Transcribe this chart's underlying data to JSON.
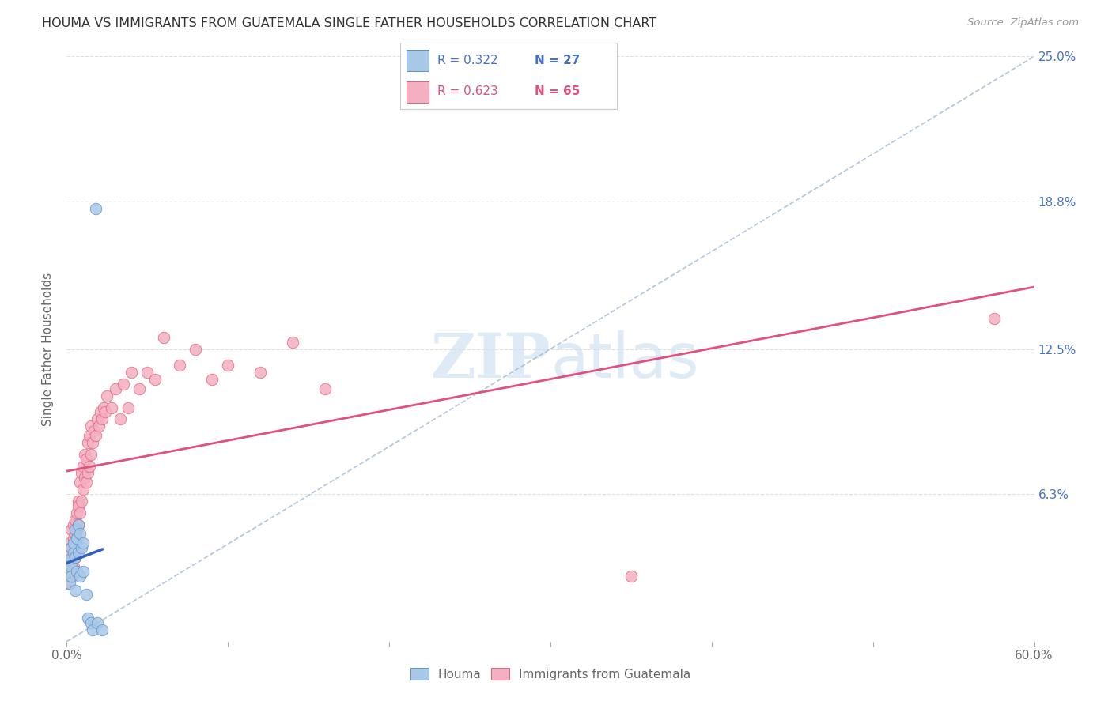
{
  "title": "HOUMA VS IMMIGRANTS FROM GUATEMALA SINGLE FATHER HOUSEHOLDS CORRELATION CHART",
  "source": "Source: ZipAtlas.com",
  "ylabel": "Single Father Households",
  "xlim": [
    0.0,
    0.6
  ],
  "ylim": [
    0.0,
    0.25
  ],
  "ytick_positions": [
    0.0,
    0.063,
    0.125,
    0.188,
    0.25
  ],
  "ytick_labels_right": [
    "",
    "6.3%",
    "12.5%",
    "18.8%",
    "25.0%"
  ],
  "xtick_positions": [
    0.0,
    0.1,
    0.2,
    0.3,
    0.4,
    0.5,
    0.6
  ],
  "xtick_labels": [
    "0.0%",
    "",
    "",
    "",
    "",
    "",
    "60.0%"
  ],
  "color_houma_fill": "#a8c8e8",
  "color_houma_edge": "#6090c8",
  "color_guatemala_fill": "#f4b0c0",
  "color_guatemala_edge": "#e06080",
  "color_houma_line": "#3060c0",
  "color_guatemala_line": "#e05080",
  "color_dashed": "#a0b8d0",
  "background_color": "#ffffff",
  "grid_color": "#e0e0e0",
  "watermark_color": "#c8dff0",
  "title_color": "#333333",
  "source_color": "#999999",
  "ylabel_color": "#666666",
  "right_tick_color": "#4472c4",
  "bottom_label_color": "#666666",
  "legend_r1": "R = 0.322",
  "legend_n1": "N = 27",
  "legend_r2": "R = 0.623",
  "legend_n2": "N = 65",
  "houma_x": [
    0.001,
    0.002,
    0.002,
    0.003,
    0.003,
    0.003,
    0.004,
    0.004,
    0.005,
    0.005,
    0.005,
    0.006,
    0.006,
    0.007,
    0.007,
    0.008,
    0.008,
    0.009,
    0.01,
    0.01,
    0.012,
    0.013,
    0.015,
    0.016,
    0.019,
    0.022,
    0.018
  ],
  "houma_y": [
    0.03,
    0.035,
    0.025,
    0.04,
    0.032,
    0.028,
    0.038,
    0.042,
    0.048,
    0.036,
    0.022,
    0.044,
    0.03,
    0.05,
    0.038,
    0.046,
    0.028,
    0.04,
    0.042,
    0.03,
    0.02,
    0.01,
    0.008,
    0.005,
    0.008,
    0.005,
    0.185
  ],
  "guatemala_x": [
    0.001,
    0.001,
    0.002,
    0.002,
    0.002,
    0.003,
    0.003,
    0.003,
    0.004,
    0.004,
    0.004,
    0.005,
    0.005,
    0.005,
    0.005,
    0.006,
    0.006,
    0.007,
    0.007,
    0.007,
    0.008,
    0.008,
    0.009,
    0.009,
    0.01,
    0.01,
    0.011,
    0.011,
    0.012,
    0.012,
    0.013,
    0.013,
    0.014,
    0.014,
    0.015,
    0.015,
    0.016,
    0.017,
    0.018,
    0.019,
    0.02,
    0.021,
    0.022,
    0.023,
    0.024,
    0.025,
    0.028,
    0.03,
    0.033,
    0.035,
    0.038,
    0.04,
    0.045,
    0.05,
    0.055,
    0.06,
    0.07,
    0.08,
    0.09,
    0.1,
    0.12,
    0.14,
    0.16,
    0.35,
    0.575
  ],
  "guatemala_y": [
    0.025,
    0.035,
    0.03,
    0.038,
    0.042,
    0.028,
    0.04,
    0.048,
    0.032,
    0.044,
    0.05,
    0.036,
    0.052,
    0.04,
    0.046,
    0.055,
    0.048,
    0.06,
    0.05,
    0.058,
    0.055,
    0.068,
    0.06,
    0.072,
    0.065,
    0.075,
    0.07,
    0.08,
    0.068,
    0.078,
    0.072,
    0.085,
    0.075,
    0.088,
    0.08,
    0.092,
    0.085,
    0.09,
    0.088,
    0.095,
    0.092,
    0.098,
    0.095,
    0.1,
    0.098,
    0.105,
    0.1,
    0.108,
    0.095,
    0.11,
    0.1,
    0.115,
    0.108,
    0.115,
    0.112,
    0.13,
    0.118,
    0.125,
    0.112,
    0.118,
    0.115,
    0.128,
    0.108,
    0.028,
    0.138
  ]
}
